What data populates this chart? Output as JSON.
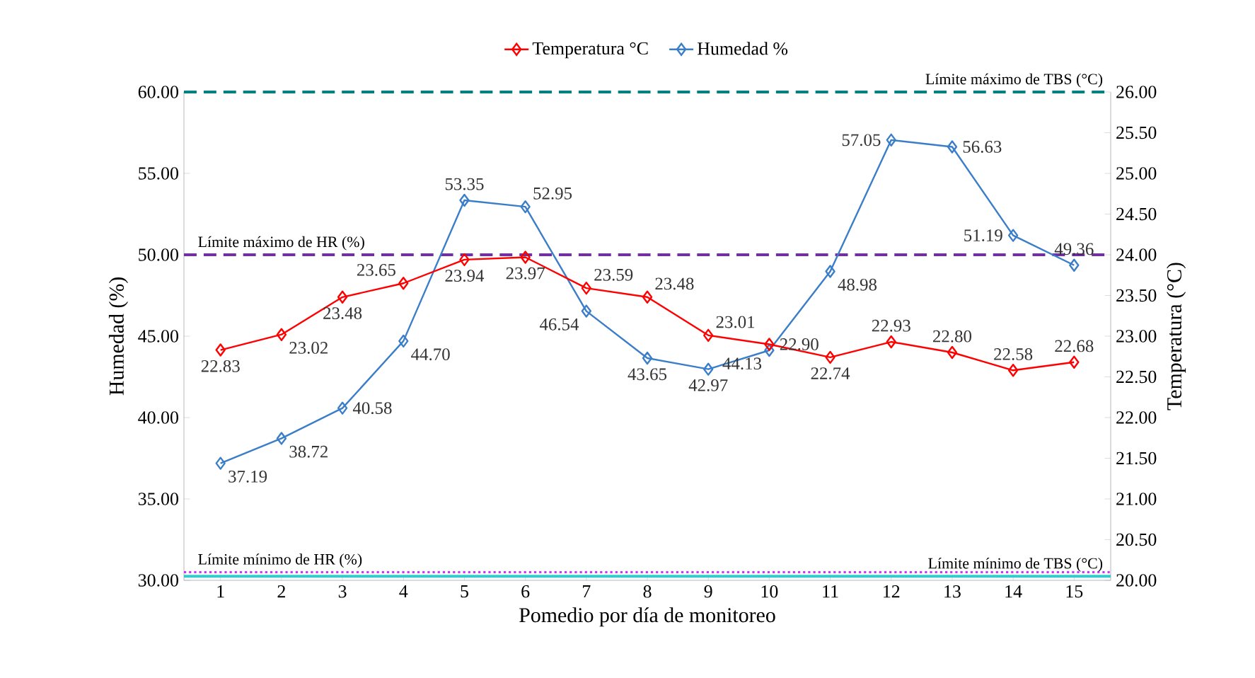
{
  "chart_data": {
    "type": "line",
    "xlabel": "Pomedio por día de monitoreo",
    "ylabel": "Humedad (%)",
    "y2label": "Temperatura (°C)",
    "categories": [
      "1",
      "2",
      "3",
      "4",
      "5",
      "6",
      "7",
      "8",
      "9",
      "10",
      "11",
      "12",
      "13",
      "14",
      "15"
    ],
    "series": [
      {
        "name": "Temperatura °C",
        "color": "#ff0000",
        "axis": "y2",
        "values": [
          22.83,
          23.02,
          23.48,
          23.65,
          23.94,
          23.97,
          23.59,
          23.48,
          23.01,
          22.9,
          22.74,
          22.93,
          22.8,
          22.58,
          22.68
        ],
        "value_labels": [
          "22.83",
          "23.02",
          "23.48",
          "23.65",
          "23.94",
          "23.97",
          "23.59",
          "23.48",
          "23.01",
          "22.90",
          "22.74",
          "22.93",
          "22.80",
          "22.58",
          "22.68"
        ]
      },
      {
        "name": "Humedad %",
        "color": "#3a7dc9",
        "axis": "y",
        "values": [
          37.19,
          38.72,
          40.58,
          44.7,
          53.35,
          52.95,
          46.54,
          43.65,
          42.97,
          44.13,
          48.98,
          57.05,
          56.63,
          51.19,
          49.36
        ],
        "value_labels": [
          "37.19",
          "38.72",
          "40.58",
          "44.70",
          "53.35",
          "52.95",
          "46.54",
          "43.65",
          "42.97",
          "44.13",
          "48.98",
          "57.05",
          "56.63",
          "51.19",
          "49.36"
        ]
      }
    ],
    "ylim": [
      30,
      60
    ],
    "yticks": [
      {
        "value": 30,
        "label": "30.00"
      },
      {
        "value": 35,
        "label": "35.00"
      },
      {
        "value": 40,
        "label": "40.00"
      },
      {
        "value": 45,
        "label": "45.00"
      },
      {
        "value": 50,
        "label": "50.00"
      },
      {
        "value": 55,
        "label": "55.00"
      },
      {
        "value": 60,
        "label": "60.00"
      }
    ],
    "y2lim": [
      20,
      26
    ],
    "y2ticks": [
      {
        "value": 20,
        "label": "20.00"
      },
      {
        "value": 20.5,
        "label": "20.50"
      },
      {
        "value": 21,
        "label": "21.00"
      },
      {
        "value": 21.5,
        "label": "21.50"
      },
      {
        "value": 22,
        "label": "22.00"
      },
      {
        "value": 22.5,
        "label": "22.50"
      },
      {
        "value": 23,
        "label": "23.00"
      },
      {
        "value": 23.5,
        "label": "23.50"
      },
      {
        "value": 24,
        "label": "24.00"
      },
      {
        "value": 24.5,
        "label": "24.50"
      },
      {
        "value": 25,
        "label": "25.00"
      },
      {
        "value": 25.5,
        "label": "25.50"
      },
      {
        "value": 26,
        "label": "26.00"
      }
    ],
    "ref_lines": [
      {
        "axis": "y2",
        "value": 26,
        "label": "Límite máximo de TBS (°C)",
        "color": "#008080",
        "line_style": "dashed"
      },
      {
        "axis": "y",
        "value": 50,
        "label": "Límite máximo de HR (%)",
        "color": "#7030a0",
        "line_style": "dashed"
      },
      {
        "axis": "y",
        "value": 30.5,
        "label": "Límite mínimo de HR (%)",
        "color": "#cc33ff",
        "line_style": "dotted"
      },
      {
        "axis": "y2",
        "value": 20.05,
        "label": "Límite mínimo de TBS (°C)",
        "color": "#33cccc",
        "line_style": "solid"
      }
    ],
    "legend": "top",
    "marker": "diamond",
    "grid": false
  }
}
